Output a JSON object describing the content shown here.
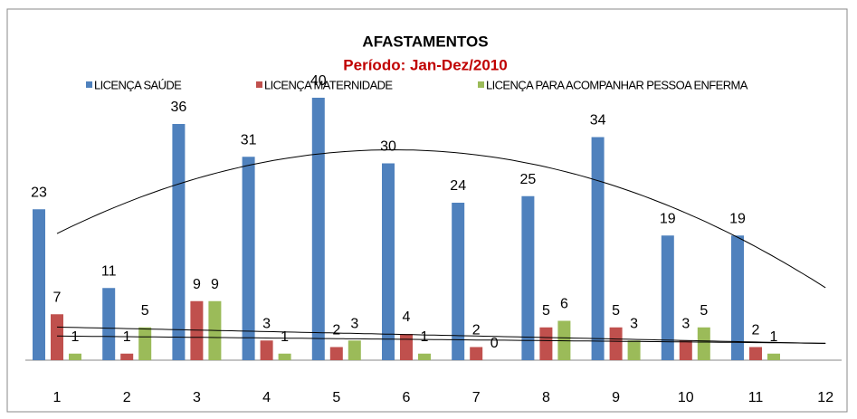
{
  "chart_data": {
    "type": "bar",
    "title": "AFASTAMENTOS",
    "subtitle": "Período: Jan-Dez/2010",
    "categories": [
      "1",
      "2",
      "3",
      "4",
      "5",
      "6",
      "7",
      "8",
      "9",
      "10",
      "11",
      "12"
    ],
    "series": [
      {
        "name": "LICENÇA SAÚDE",
        "color": "#4f81bd",
        "values": [
          23,
          11,
          36,
          31,
          40,
          30,
          24,
          25,
          34,
          19,
          19,
          null
        ],
        "trendline": "polynomial",
        "trendline_order": 2
      },
      {
        "name": "LICENÇA MATERNIDADE",
        "color": "#c0504d",
        "values": [
          7,
          1,
          9,
          3,
          2,
          4,
          2,
          5,
          5,
          3,
          2,
          null
        ],
        "trendline": "linear",
        "trendline_order": 1
      },
      {
        "name": "LICENÇA PARA ACOMPANHAR PESSOA ENFERMA",
        "color": "#9bbb59",
        "values": [
          1,
          5,
          9,
          1,
          3,
          1,
          0,
          6,
          3,
          5,
          1,
          null
        ],
        "trendline": "linear",
        "trendline_order": 1
      }
    ],
    "ylim": [
      0,
      50
    ],
    "legend": "top",
    "grid": false
  }
}
